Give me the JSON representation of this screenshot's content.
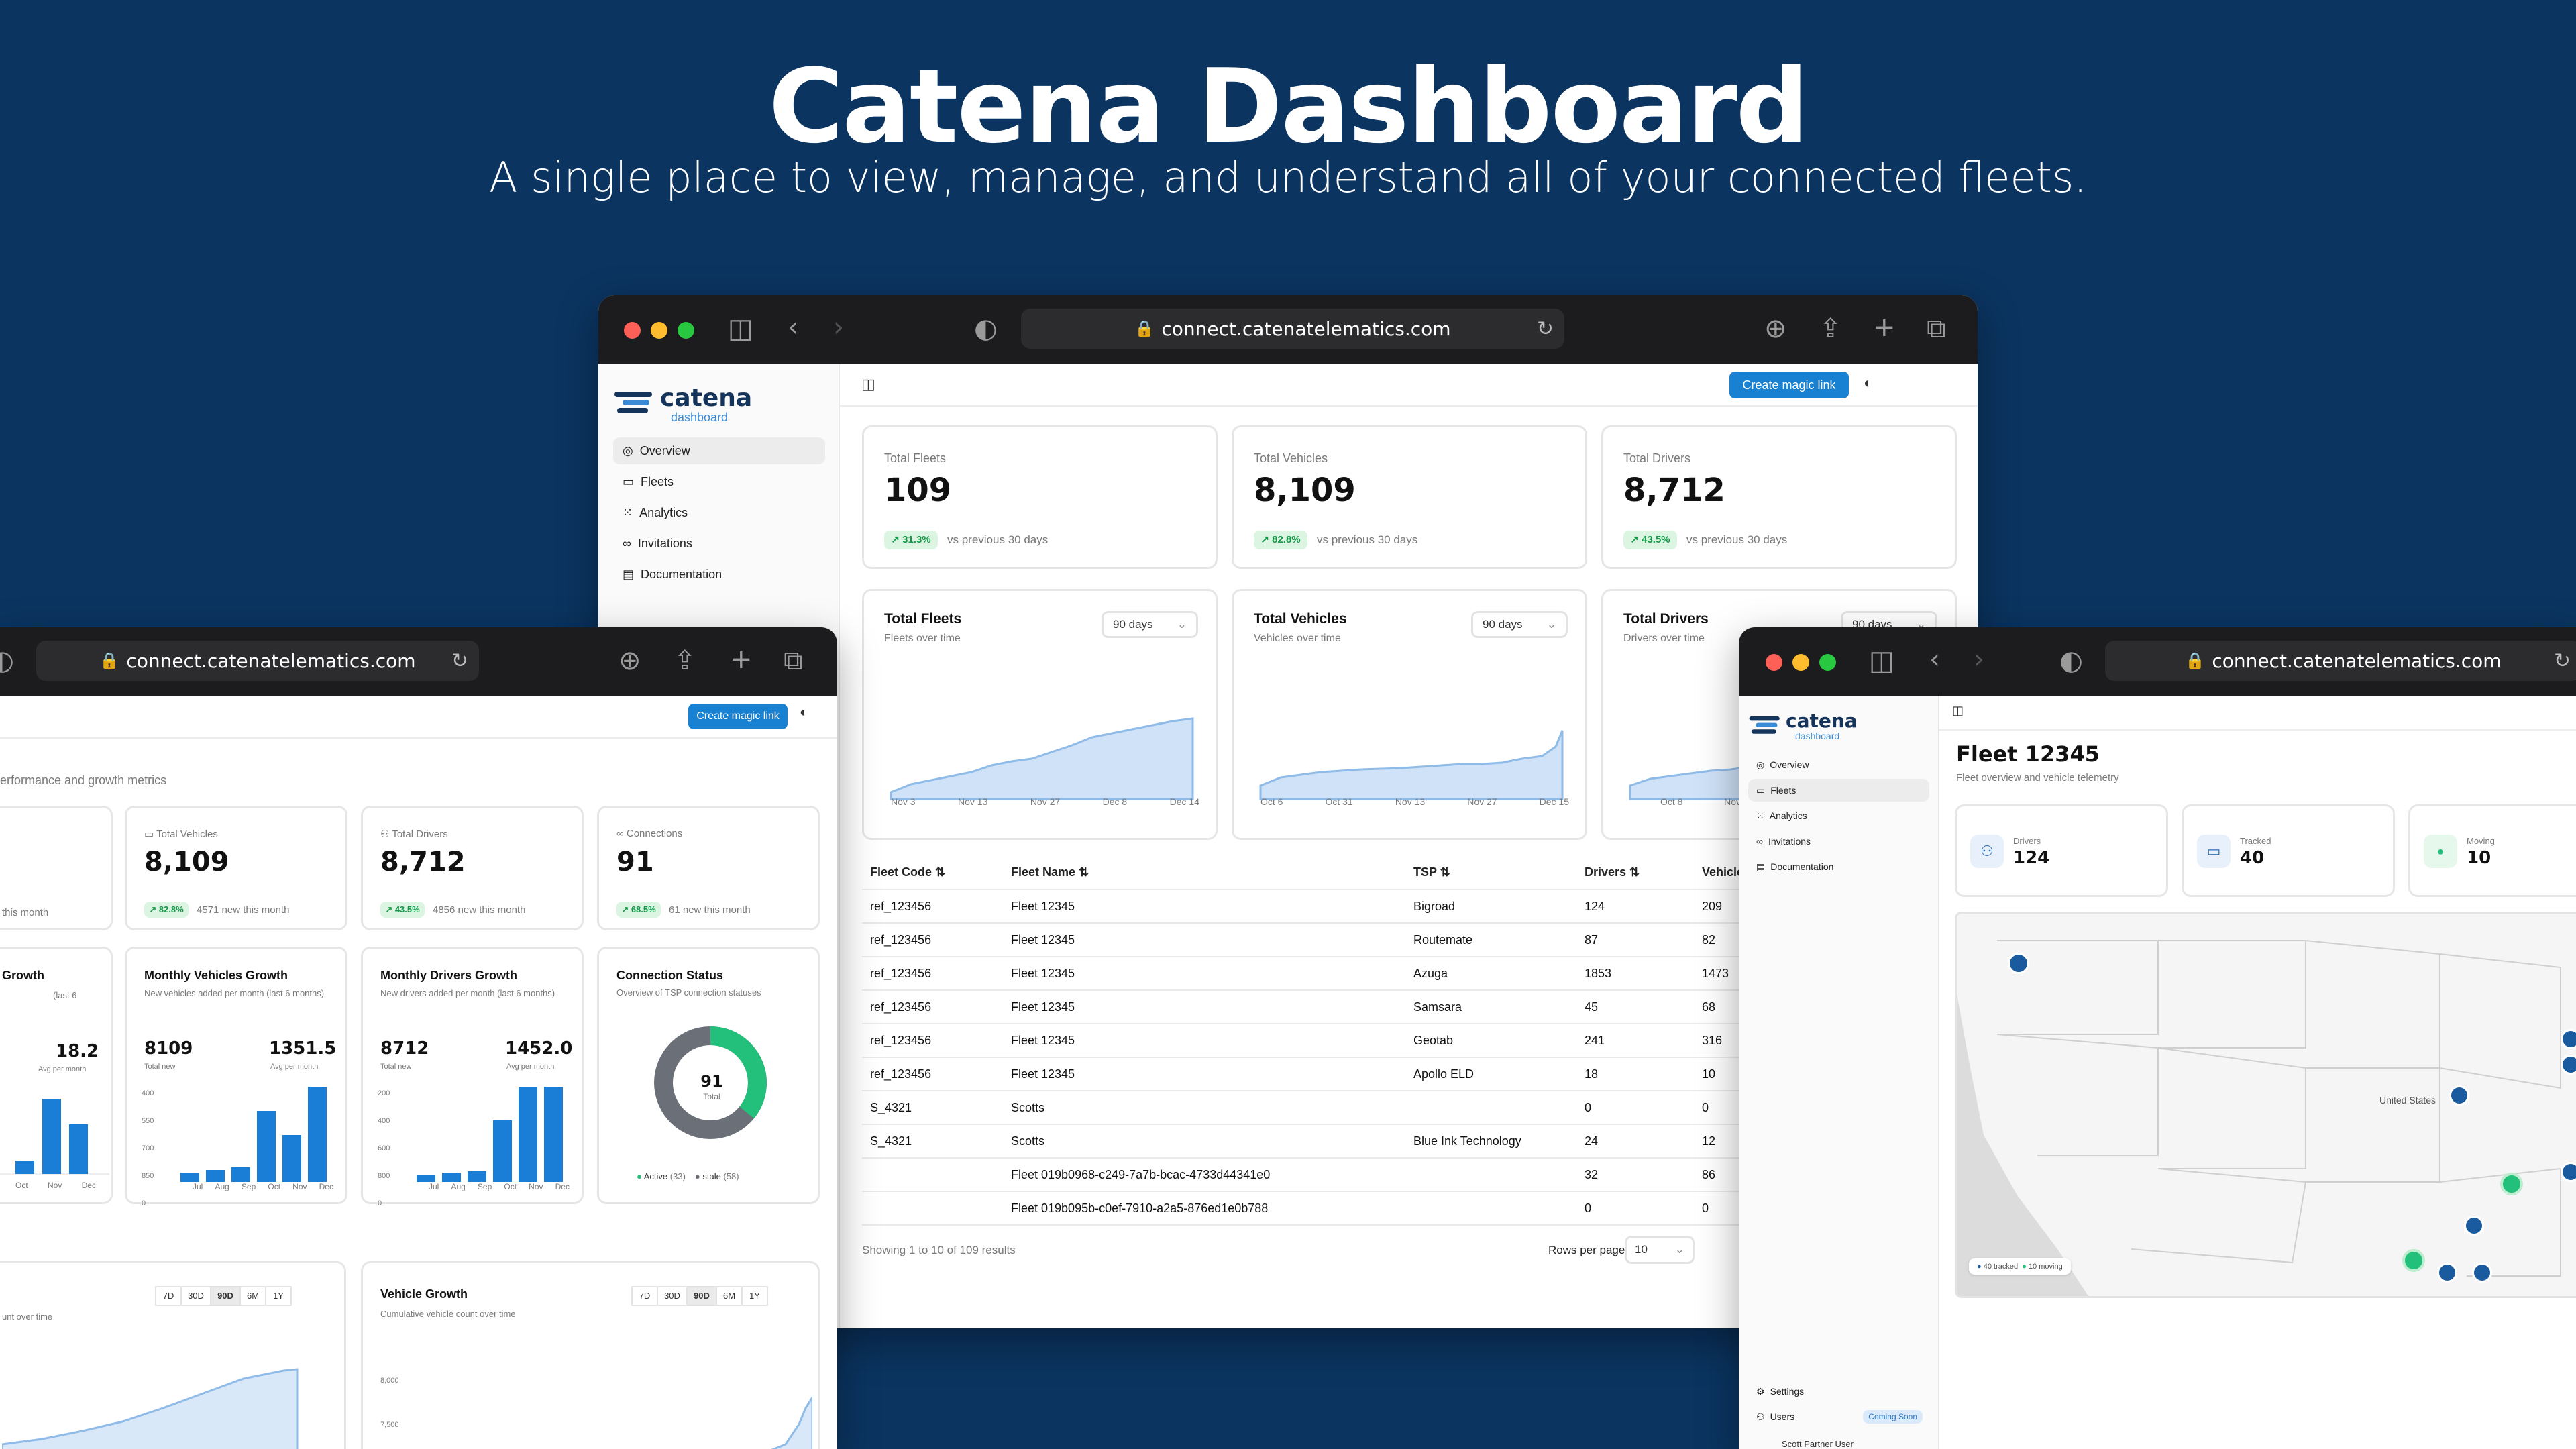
{
  "hero": {
    "title": "Catena Dashboard",
    "subtitle": "A single place to view, manage, and understand all of your connected fleets."
  },
  "browser": {
    "url": "connect.catenatelematics.com"
  },
  "brand": {
    "name": "catena",
    "sub": "dashboard"
  },
  "nav": [
    "Overview",
    "Fleets",
    "Analytics",
    "Invitations",
    "Documentation"
  ],
  "nav_bottom": {
    "settings": "Settings",
    "users": "Users",
    "coming_soon": "Coming Soon",
    "user_name": "Scott Partner User"
  },
  "header": {
    "magic_link": "Create magic link"
  },
  "center": {
    "kpis": [
      {
        "label": "Total Fleets",
        "value": "109",
        "delta": "↗ 31.3%",
        "note": "vs previous 30 days"
      },
      {
        "label": "Total Vehicles",
        "value": "8,109",
        "delta": "↗ 82.8%",
        "note": "vs previous 30 days"
      },
      {
        "label": "Total Drivers",
        "value": "8,712",
        "delta": "↗ 43.5%",
        "note": "vs previous 30 days"
      }
    ],
    "charts": [
      {
        "title": "Total Fleets",
        "sub": "Fleets over time",
        "range": "90 days",
        "ticks": [
          "Nov 3",
          "Nov 13",
          "Nov 27",
          "Dec 8",
          "Dec 14"
        ]
      },
      {
        "title": "Total Vehicles",
        "sub": "Vehicles over time",
        "range": "90 days",
        "ticks": [
          "Oct 6",
          "Oct 31",
          "Nov 13",
          "Nov 27",
          "Dec 15"
        ]
      },
      {
        "title": "Total Drivers",
        "sub": "Drivers over time",
        "range": "90 days",
        "ticks": [
          "Oct 8",
          "Nov"
        ]
      }
    ],
    "table": {
      "headers": [
        "Fleet Code ⇅",
        "Fleet Name ⇅",
        "TSP ⇅",
        "Drivers ⇅",
        "Vehicles"
      ],
      "rows": [
        [
          "ref_123456",
          "Fleet 12345",
          "Bigroad",
          "124",
          "209"
        ],
        [
          "ref_123456",
          "Fleet 12345",
          "Routemate",
          "87",
          "82"
        ],
        [
          "ref_123456",
          "Fleet 12345",
          "Azuga",
          "1853",
          "1473"
        ],
        [
          "ref_123456",
          "Fleet 12345",
          "Samsara",
          "45",
          "68"
        ],
        [
          "ref_123456",
          "Fleet 12345",
          "Geotab",
          "241",
          "316"
        ],
        [
          "ref_123456",
          "Fleet 12345",
          "Apollo ELD",
          "18",
          "10"
        ],
        [
          "S_4321",
          "Scotts",
          "",
          "0",
          "0"
        ],
        [
          "S_4321",
          "Scotts",
          "Blue Ink Technology",
          "24",
          "12"
        ],
        [
          "",
          "Fleet 019b0968-c249-7a7b-bcac-4733d44341e0",
          "",
          "32",
          "86"
        ],
        [
          "",
          "Fleet 019b095b-c0ef-7910-a2a5-876ed1e0b788",
          "",
          "0",
          "0"
        ]
      ],
      "footer": "Showing 1 to 10 of 109 results",
      "rows_per_page_label": "Rows per page",
      "rows_per_page": "10"
    }
  },
  "left": {
    "subtitle": "erformance and growth metrics",
    "kpis": [
      {
        "label": "",
        "value": "",
        "badge": "",
        "note": "this month"
      },
      {
        "label": "Total Vehicles",
        "value": "8,109",
        "badge": "↗ 82.8%",
        "note": "4571 new this month"
      },
      {
        "label": "Total Drivers",
        "value": "8,712",
        "badge": "↗ 43.5%",
        "note": "4856 new this month"
      },
      {
        "label": "Connections",
        "value": "91",
        "badge": "↗ 68.5%",
        "note": "61 new this month"
      }
    ],
    "growth": [
      {
        "title": "Growth",
        "sub": "(last 6",
        "total": "",
        "total_label": "",
        "avg": "18.2",
        "avg_label": "Avg per month"
      },
      {
        "title": "Monthly Vehicles Growth",
        "sub": "New vehicles added per month (last 6 months)",
        "total": "8109",
        "total_label": "Total new",
        "avg": "1351.5",
        "avg_label": "Avg per month",
        "yticks": [
          "400",
          "550",
          "700",
          "850",
          "0"
        ]
      },
      {
        "title": "Monthly Drivers Growth",
        "sub": "New drivers added per month (last 6 months)",
        "total": "8712",
        "total_label": "Total new",
        "avg": "1452.0",
        "avg_label": "Avg per month",
        "yticks": [
          "200",
          "400",
          "600",
          "800",
          "0"
        ]
      }
    ],
    "months": [
      "Jul",
      "Aug",
      "Sep",
      "Oct",
      "Nov",
      "Dec"
    ],
    "left_months": [
      "Oct",
      "Nov",
      "Dec"
    ],
    "connection": {
      "title": "Connection Status",
      "sub": "Overview of TSP connection statuses",
      "total": "91",
      "total_label": "Total",
      "active_label": "Active",
      "active": "(33)",
      "stale_label": "stale",
      "stale": "(58)",
      "active_color": "#22c07a",
      "stale_color": "#6b6f78"
    },
    "bottom_left": {
      "sub": "unt over time",
      "seg": [
        "7D",
        "30D",
        "90D",
        "6M",
        "1Y"
      ],
      "active": "90D"
    },
    "bottom_right": {
      "title": "Vehicle Growth",
      "sub": "Cumulative vehicle count over time",
      "seg": [
        "7D",
        "30D",
        "90D",
        "6M",
        "1Y"
      ],
      "active": "90D",
      "yticks": [
        "8,000",
        "7,500"
      ]
    }
  },
  "right": {
    "title": "Fleet 12345",
    "subtitle": "Fleet overview and vehicle telemetry",
    "stats": [
      {
        "label": "Drivers",
        "value": "124"
      },
      {
        "label": "Tracked",
        "value": "40"
      },
      {
        "label": "Moving",
        "value": "10"
      }
    ],
    "map": {
      "legend_tracked": "40 tracked",
      "legend_moving": "10 moving",
      "country": "United States",
      "moving_color": "#22c07a",
      "tracked_color": "#1a5a9e"
    }
  }
}
